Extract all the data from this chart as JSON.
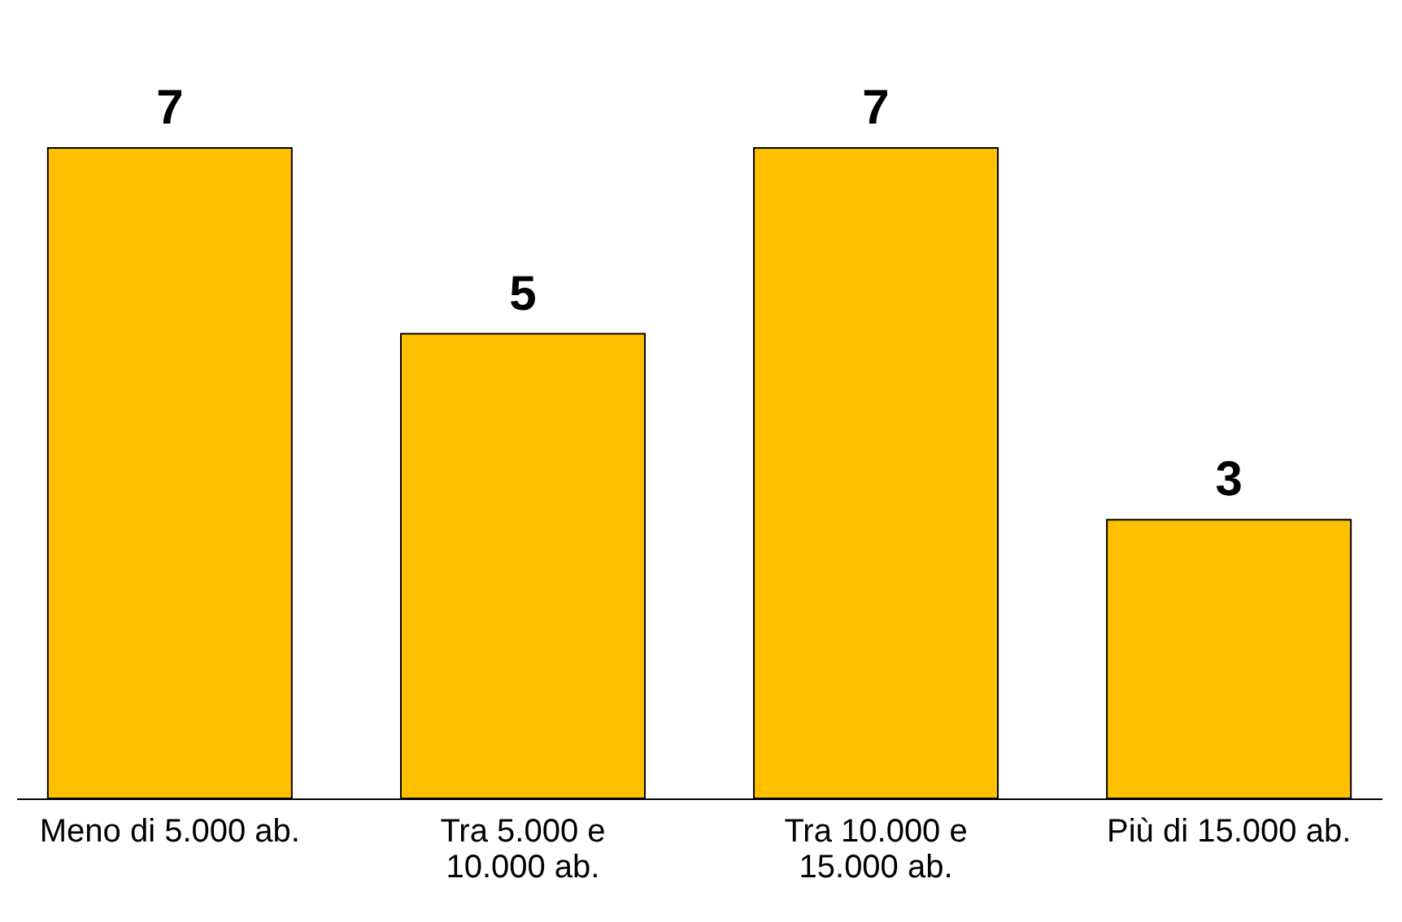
{
  "chart_data": {
    "type": "bar",
    "categories": [
      "Meno di 5.000 ab.",
      "Tra 5.000 e 10.000 ab.",
      "Tra 10.000 e 15.000 ab.",
      "Più di 15.000 ab."
    ],
    "values": [
      7,
      5,
      7,
      3
    ],
    "color": "#ffc000",
    "data_labels": true
  }
}
